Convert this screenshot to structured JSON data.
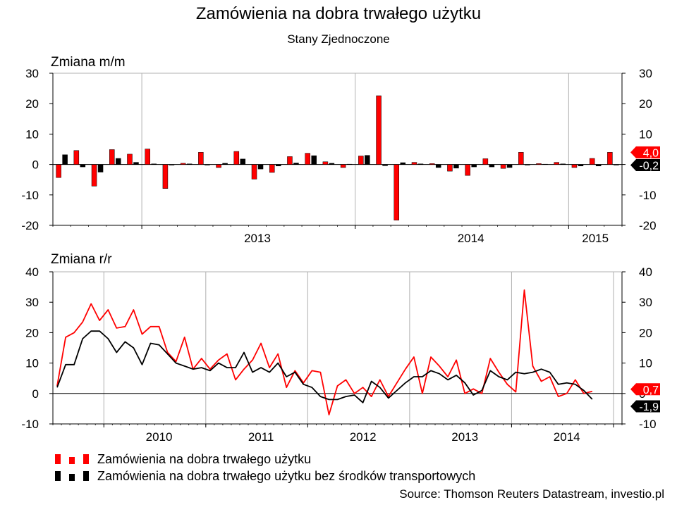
{
  "title": "Zamówienia na dobra trwałego użytku",
  "subtitle": "Stany Zjednoczone",
  "source": "Source: Thomson Reuters Datastream, investio.pl",
  "colors": {
    "red": "#ff0000",
    "black": "#000000",
    "grid": "#b0b0b0"
  },
  "legend": [
    {
      "label": "Zamówienia na dobra trwałego użytku",
      "color": "#ff0000"
    },
    {
      "label": "Zamówienia na dobra trwałego użytku bez środków transportowych",
      "color": "#000000"
    }
  ],
  "chart_data": [
    {
      "type": "bar",
      "panel_label": "Zmiana m/m",
      "ylim": [
        -20,
        30
      ],
      "yticks": [
        -20,
        -10,
        0,
        10,
        20,
        30
      ],
      "x_start": "2012-08",
      "x_end": "2015-03",
      "year_labels": [
        {
          "label": "2013",
          "at": "2013-07"
        },
        {
          "label": "2014",
          "at": "2014-07"
        },
        {
          "label": "2015",
          "at": "2015-02"
        }
      ],
      "dividers": [
        "2013-01",
        "2014-01",
        "2015-01"
      ],
      "categories": [
        "2012-08",
        "2012-09",
        "2012-10",
        "2012-11",
        "2012-12",
        "2013-01",
        "2013-02",
        "2013-03",
        "2013-04",
        "2013-05",
        "2013-06",
        "2013-07",
        "2013-08",
        "2013-09",
        "2013-10",
        "2013-11",
        "2013-12",
        "2014-01",
        "2014-02",
        "2014-03",
        "2014-04",
        "2014-05",
        "2014-06",
        "2014-07",
        "2014-08",
        "2014-09",
        "2014-10",
        "2014-11",
        "2014-12",
        "2015-01",
        "2015-02",
        "2015-03"
      ],
      "series": [
        {
          "name": "Zamówienia na dobra trwałego użytku",
          "color": "#ff0000",
          "values": [
            -4.3,
            4.6,
            -7.1,
            4.9,
            3.4,
            5.1,
            -7.9,
            0.4,
            4.0,
            -1.0,
            4.3,
            -4.8,
            -2.6,
            2.6,
            3.7,
            0.9,
            -1.0,
            2.8,
            22.6,
            -18.3,
            0.7,
            0.3,
            -2.2,
            -3.6,
            1.9,
            -1.3,
            4.0,
            0.3,
            0.7,
            -1.0,
            2.0,
            4.0
          ]
        },
        {
          "name": "Zamówienia na dobra trwałego użytku bez środków transportowych",
          "color": "#000000",
          "values": [
            3.2,
            -0.8,
            -2.5,
            2.0,
            0.7,
            0.2,
            -0.2,
            0.2,
            -0.2,
            0.4,
            1.8,
            -1.5,
            -0.5,
            0.5,
            2.9,
            0.4,
            0.1,
            3.0,
            -0.4,
            0.6,
            0.2,
            -1.0,
            -1.2,
            -0.8,
            -0.8,
            -1.0,
            -0.2,
            0.1,
            0.2,
            -0.5,
            -0.5,
            -0.2
          ]
        }
      ],
      "right_labels": [
        {
          "text": "4,0",
          "value": 4.0,
          "color": "#ff0000"
        },
        {
          "text": "-0,2",
          "value": -0.2,
          "color": "#000000"
        }
      ]
    },
    {
      "type": "line",
      "panel_label": "Zmiana r/r",
      "ylim": [
        -10,
        40
      ],
      "yticks": [
        -10,
        0,
        10,
        20,
        30,
        40
      ],
      "x_start": "2009-07",
      "x_end": "2015-01",
      "year_labels": [
        {
          "label": "2010",
          "at": "2010-07"
        },
        {
          "label": "2011",
          "at": "2011-07"
        },
        {
          "label": "2012",
          "at": "2012-07"
        },
        {
          "label": "2013",
          "at": "2013-07"
        },
        {
          "label": "2014",
          "at": "2014-07"
        }
      ],
      "dividers": [
        "2010-01",
        "2011-01",
        "2012-01",
        "2013-01",
        "2014-01",
        "2015-01"
      ],
      "series": [
        {
          "name": "Zamówienia na dobra trwałego użytku",
          "color": "#ff0000",
          "values": [
            2.5,
            18.5,
            20.0,
            23.5,
            29.5,
            24.0,
            27.5,
            21.5,
            22.0,
            27.5,
            19.5,
            22.0,
            22.0,
            13.5,
            10.5,
            18.5,
            8.0,
            11.5,
            8.0,
            11.0,
            13.0,
            4.5,
            8.0,
            11.0,
            16.5,
            8.5,
            13.0,
            2.0,
            7.5,
            3.5,
            7.5,
            7.0,
            -7.0,
            2.5,
            4.5,
            0.0,
            2.0,
            -1.0,
            4.5,
            -1.0,
            3.5,
            8.0,
            12.0,
            0.0,
            12.0,
            9.0,
            5.5,
            11.0,
            0.0,
            1.5,
            0.0,
            11.5,
            7.0,
            3.0,
            0.5,
            34.0,
            9.0,
            4.0,
            5.5,
            -1.0,
            0.0,
            4.5,
            0.0,
            0.7
          ]
        },
        {
          "name": "Zamówienia na dobra trwałego użytku bez środków transportowych",
          "color": "#000000",
          "values": [
            2.0,
            9.5,
            9.5,
            18.0,
            20.5,
            20.5,
            18.0,
            13.5,
            17.0,
            15.0,
            9.5,
            16.5,
            16.0,
            13.0,
            10.0,
            9.0,
            8.0,
            8.5,
            7.5,
            10.0,
            8.5,
            8.5,
            13.5,
            7.0,
            8.5,
            7.0,
            10.0,
            5.5,
            7.0,
            3.0,
            2.0,
            -1.0,
            -2.0,
            -2.0,
            -1.0,
            -0.5,
            -3.0,
            4.0,
            2.0,
            -1.5,
            1.0,
            3.5,
            5.5,
            5.5,
            7.5,
            6.5,
            4.5,
            6.0,
            3.5,
            -0.5,
            1.0,
            7.5,
            5.5,
            4.5,
            7.0,
            6.5,
            7.0,
            8.0,
            7.0,
            3.0,
            3.5,
            3.0,
            1.0,
            -1.9
          ]
        }
      ],
      "right_labels": [
        {
          "text": "0,7",
          "value": 0.7,
          "color": "#ff0000"
        },
        {
          "text": "-1,9",
          "value": -1.9,
          "color": "#000000"
        }
      ]
    }
  ]
}
